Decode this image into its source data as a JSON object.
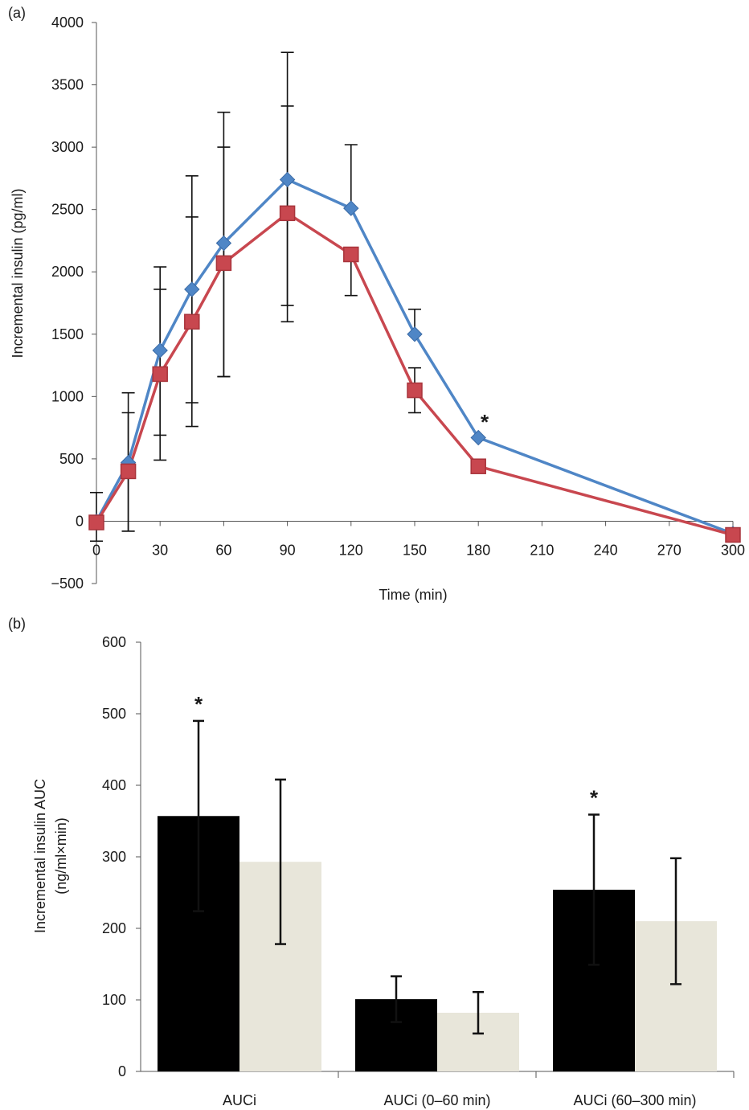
{
  "chart_data": [
    {
      "panel_label": "(a)",
      "type": "line",
      "xlabel": "Time (min)",
      "ylabel": "Incremental insulin (pg/ml)",
      "xlim": [
        0,
        300
      ],
      "ylim": [
        -500,
        4000
      ],
      "x_ticks": [
        0,
        30,
        60,
        90,
        120,
        150,
        180,
        210,
        240,
        270,
        300
      ],
      "y_ticks": [
        -500,
        0,
        500,
        1000,
        1500,
        2000,
        2500,
        3000,
        3500,
        4000
      ],
      "y_tick_labels": [
        "−500",
        "0",
        "500",
        "1000",
        "1500",
        "2000",
        "2500",
        "3000",
        "3500",
        "4000"
      ],
      "grid": false,
      "colors": {
        "series_1": "#4f86c6",
        "series_2": "#c8474f"
      },
      "series": [
        {
          "marker": "diamond",
          "x": [
            0,
            15,
            30,
            45,
            60,
            90,
            120,
            150,
            180,
            300
          ],
          "y": [
            0,
            470,
            1370,
            1860,
            2230,
            2740,
            2510,
            1500,
            670,
            -100
          ],
          "err_up": [
            0,
            560,
            670,
            910,
            1050,
            1020,
            510,
            200,
            0,
            0
          ],
          "err_down": [
            0,
            550,
            680,
            910,
            1070,
            1010,
            0,
            0,
            0,
            0
          ]
        },
        {
          "marker": "square",
          "x": [
            0,
            15,
            30,
            45,
            60,
            90,
            120,
            150,
            180,
            300
          ],
          "y": [
            -10,
            400,
            1180,
            1600,
            2070,
            2470,
            2140,
            1050,
            440,
            -110
          ],
          "err_up": [
            240,
            470,
            680,
            840,
            930,
            860,
            0,
            180,
            0,
            0
          ],
          "err_down": [
            150,
            480,
            690,
            840,
            910,
            870,
            330,
            180,
            0,
            0
          ]
        }
      ],
      "annotations": [
        {
          "text": "*",
          "x": 183,
          "y": 790
        }
      ]
    },
    {
      "panel_label": "(b)",
      "type": "bar",
      "xlabel": "",
      "ylabel": "Incremental insulin AUC",
      "ylabel2": "(ng/ml×min)",
      "categories": [
        "AUCi",
        "AUCi (0–60 min)",
        "AUCi (60–300 min)"
      ],
      "ylim": [
        0,
        600
      ],
      "y_ticks": [
        0,
        100,
        200,
        300,
        400,
        500,
        600
      ],
      "grid": false,
      "colors": {
        "series_1": "#000000",
        "series_2": "#e8e6da"
      },
      "series": [
        {
          "values": [
            357,
            101,
            254
          ],
          "err": [
            133,
            32,
            105
          ]
        },
        {
          "values": [
            293,
            82,
            210
          ],
          "err": [
            115,
            29,
            88
          ]
        }
      ],
      "annotations": [
        {
          "text": "*",
          "category": 0,
          "series": 0
        },
        {
          "text": "*",
          "category": 2,
          "series": 0
        }
      ]
    }
  ]
}
